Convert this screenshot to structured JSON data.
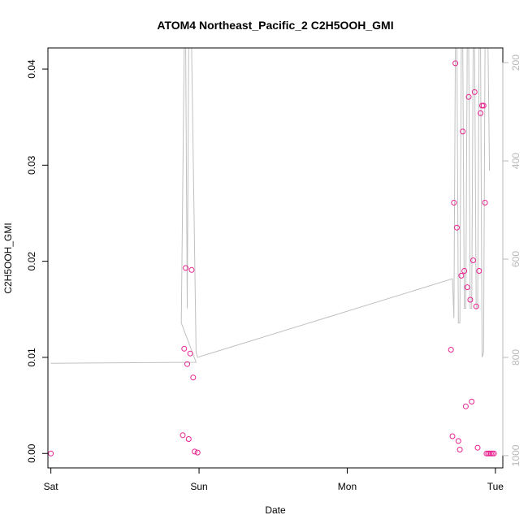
{
  "chart_data": {
    "type": "scatter",
    "title": "ATOM4 Northeast_Pacific_2 C2H5OOH_GMI",
    "xlabel": "Date",
    "ylabel": "C2H5OOH_GMI",
    "x_ticks": [
      "Sat",
      "Sun",
      "Mon",
      "Tue"
    ],
    "y_ticks": [
      "0.00",
      "0.01",
      "0.02",
      "0.03",
      "0.04"
    ],
    "y2_ticks": [
      "200",
      "400",
      "600",
      "800",
      "1000"
    ],
    "xlim_days": [
      -0.02,
      3.05
    ],
    "ylim": [
      -0.0015,
      0.0422
    ],
    "y2lim": [
      1025,
      170
    ],
    "colors": {
      "points": "#e8238f",
      "profile": "#c0c0c0",
      "axis_right": "#b8b8b8"
    },
    "series": [
      {
        "x_days": [
          0.0,
          0.89,
          0.9,
          0.91,
          0.92,
          0.93,
          0.94,
          0.95,
          0.96,
          0.97,
          0.99,
          2.7,
          2.71,
          2.72,
          2.73,
          2.74,
          2.75,
          2.76,
          2.77,
          2.78,
          2.79,
          2.8,
          2.81,
          2.82,
          2.83,
          2.84,
          2.85,
          2.86,
          2.87,
          2.88,
          2.89,
          2.9,
          2.91,
          2.92,
          2.93,
          2.94,
          2.95,
          2.96,
          2.97,
          2.98,
          2.99
        ],
        "y": [
          0.0,
          0.0019,
          0.0109,
          0.0193,
          0.0093,
          0.0015,
          0.0104,
          0.0191,
          0.0079,
          0.0002,
          0.0001,
          0.0108,
          0.0018,
          0.0261,
          0.0406,
          0.0235,
          0.0013,
          0.0004,
          0.0185,
          0.0335,
          0.019,
          0.0049,
          0.0173,
          0.0371,
          0.016,
          0.0054,
          0.0201,
          0.0376,
          0.0153,
          0.0006,
          0.019,
          0.0354,
          0.0362,
          0.0362,
          0.0261,
          0.0,
          0.0,
          0.0,
          0.0,
          0.0,
          0.0
        ]
      }
    ],
    "profile": {
      "x_days": [
        0.0,
        0.98,
        0.88,
        0.9,
        0.91,
        0.92,
        0.93,
        0.94,
        0.95,
        0.98,
        0.99,
        2.71,
        2.72,
        2.73,
        2.74,
        2.75,
        2.76,
        2.77,
        2.78,
        2.79,
        2.8,
        2.81,
        2.82,
        2.83,
        2.84,
        2.85,
        2.86,
        2.87,
        2.88,
        2.89,
        2.9,
        2.91,
        2.92,
        2.93,
        2.94,
        2.95,
        2.96
      ],
      "pressure": [
        812,
        810,
        730,
        170,
        170,
        700,
        170,
        170,
        170,
        790,
        800,
        640,
        720,
        170,
        170,
        730,
        730,
        170,
        170,
        700,
        700,
        170,
        170,
        700,
        700,
        170,
        170,
        700,
        700,
        170,
        170,
        800,
        790,
        170,
        170,
        170,
        420
      ]
    }
  }
}
